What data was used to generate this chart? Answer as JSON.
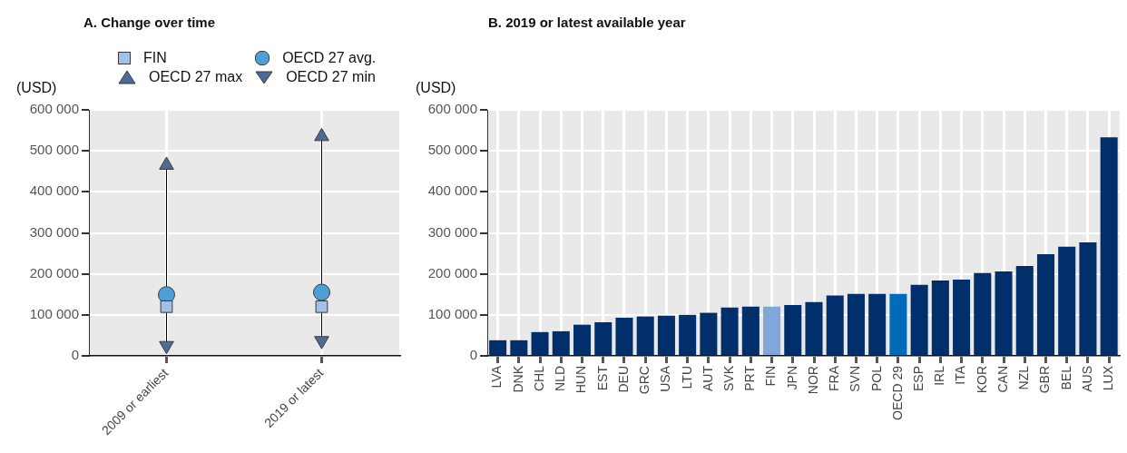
{
  "chart_data": [
    {
      "type": "scatter",
      "title": "A. Change over time",
      "ylabel": "(USD)",
      "categories": [
        "2009 or earliest",
        "2019 or latest"
      ],
      "series": [
        {
          "name": "FIN",
          "color": "#a3c1e6",
          "marker": "square",
          "values": [
            120000,
            120000
          ]
        },
        {
          "name": "OECD 27 avg.",
          "color": "#4d9fd6",
          "marker": "circle",
          "values": [
            149000,
            155000
          ]
        },
        {
          "name": "OECD 27 max",
          "color": "#4f6b95",
          "marker": "triangle",
          "values": [
            465000,
            535000
          ]
        },
        {
          "name": "OECD 27 min",
          "color": "#4f6b95",
          "marker": "triangle-down",
          "values": [
            25000,
            37000
          ]
        }
      ],
      "ylim": [
        0,
        600000
      ],
      "yticks": [
        {
          "value": 0,
          "label": "0"
        },
        {
          "value": 100000,
          "label": "100 000"
        },
        {
          "value": 200000,
          "label": "200 000"
        },
        {
          "value": 300000,
          "label": "300 000"
        },
        {
          "value": 400000,
          "label": "400 000"
        },
        {
          "value": 500000,
          "label": "500 000"
        },
        {
          "value": 600000,
          "label": "600 000"
        }
      ],
      "grid": true,
      "legend": "top"
    },
    {
      "type": "bar",
      "title": "B. 2019 or latest available year",
      "ylabel": "(USD)",
      "categories": [
        "LVA",
        "DNK",
        "CHL",
        "NLD",
        "HUN",
        "EST",
        "DEU",
        "GRC",
        "USA",
        "LTU",
        "AUT",
        "SVK",
        "PRT",
        "FIN",
        "JPN",
        "NOR",
        "FRA",
        "SVN",
        "POL",
        "OECD 29",
        "ESP",
        "IRL",
        "ITA",
        "KOR",
        "CAN",
        "NZL",
        "GBR",
        "BEL",
        "AUS",
        "LUX"
      ],
      "values": [
        38000,
        38000,
        58000,
        60000,
        76000,
        82000,
        93000,
        96000,
        98000,
        100000,
        105000,
        118000,
        120000,
        120000,
        124000,
        131000,
        147000,
        151000,
        151000,
        151000,
        173000,
        184000,
        186000,
        202000,
        206000,
        219000,
        248000,
        266000,
        277000,
        533000
      ],
      "colors": [
        "#002f6c",
        "#002f6c",
        "#002f6c",
        "#002f6c",
        "#002f6c",
        "#002f6c",
        "#002f6c",
        "#002f6c",
        "#002f6c",
        "#002f6c",
        "#002f6c",
        "#002f6c",
        "#002f6c",
        "#7fa8d9",
        "#002f6c",
        "#002f6c",
        "#002f6c",
        "#002f6c",
        "#002f6c",
        "#006bb6",
        "#002f6c",
        "#002f6c",
        "#002f6c",
        "#002f6c",
        "#002f6c",
        "#002f6c",
        "#002f6c",
        "#002f6c",
        "#002f6c",
        "#002f6c"
      ],
      "ylim": [
        0,
        600000
      ],
      "yticks": [
        {
          "value": 0,
          "label": "0"
        },
        {
          "value": 100000,
          "label": "100 000"
        },
        {
          "value": 200000,
          "label": "200 000"
        },
        {
          "value": 300000,
          "label": "300 000"
        },
        {
          "value": 400000,
          "label": "400 000"
        },
        {
          "value": 500000,
          "label": "500 000"
        },
        {
          "value": 600000,
          "label": "600 000"
        }
      ],
      "grid": true
    }
  ]
}
